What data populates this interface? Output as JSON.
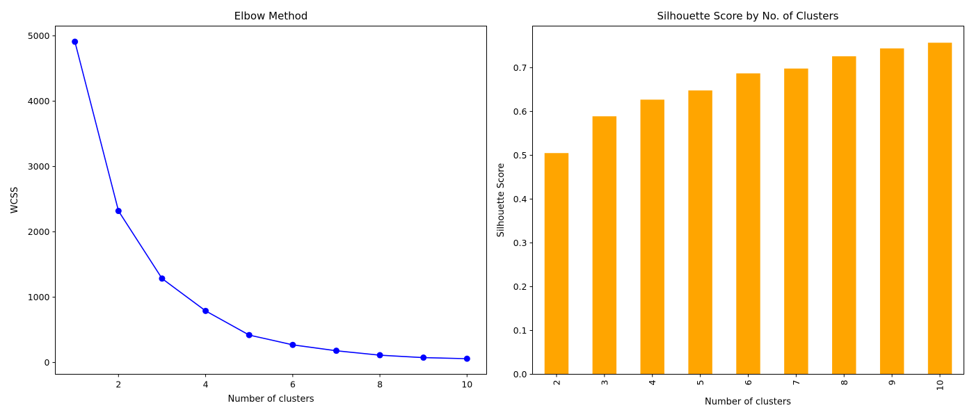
{
  "chart_data": [
    {
      "type": "line",
      "title": "Elbow Method",
      "xlabel": "Number of clusters",
      "ylabel": "WCSS",
      "x": [
        1,
        2,
        3,
        4,
        5,
        6,
        7,
        8,
        9,
        10
      ],
      "series": [
        {
          "values": [
            4910,
            2320,
            1285,
            790,
            420,
            270,
            180,
            112,
            75,
            58
          ],
          "color": "#0000ff",
          "marker": "circle"
        }
      ],
      "xlim": [
        0.55,
        10.45
      ],
      "ylim": [
        -180,
        5150
      ],
      "xticks": [
        2,
        4,
        6,
        8,
        10
      ],
      "yticks": [
        0,
        1000,
        2000,
        3000,
        4000,
        5000
      ],
      "grid": false,
      "legend": "none"
    },
    {
      "type": "bar",
      "title": "Silhouette Score by No. of Clusters",
      "xlabel": "Number of clusters",
      "ylabel": "Silhouette Score",
      "categories": [
        "2",
        "3",
        "4",
        "5",
        "6",
        "7",
        "8",
        "9",
        "10"
      ],
      "values": [
        0.505,
        0.589,
        0.627,
        0.648,
        0.687,
        0.698,
        0.726,
        0.744,
        0.757
      ],
      "color": "#ffa500",
      "ylim": [
        0.0,
        0.795
      ],
      "yticks": [
        0.0,
        0.1,
        0.2,
        0.3,
        0.4,
        0.5,
        0.6,
        0.7
      ],
      "ytick_labels": [
        "0.0",
        "0.1",
        "0.2",
        "0.3",
        "0.4",
        "0.5",
        "0.6",
        "0.7"
      ],
      "xtick_rotation": "vertical",
      "grid": false,
      "legend": "none"
    }
  ]
}
